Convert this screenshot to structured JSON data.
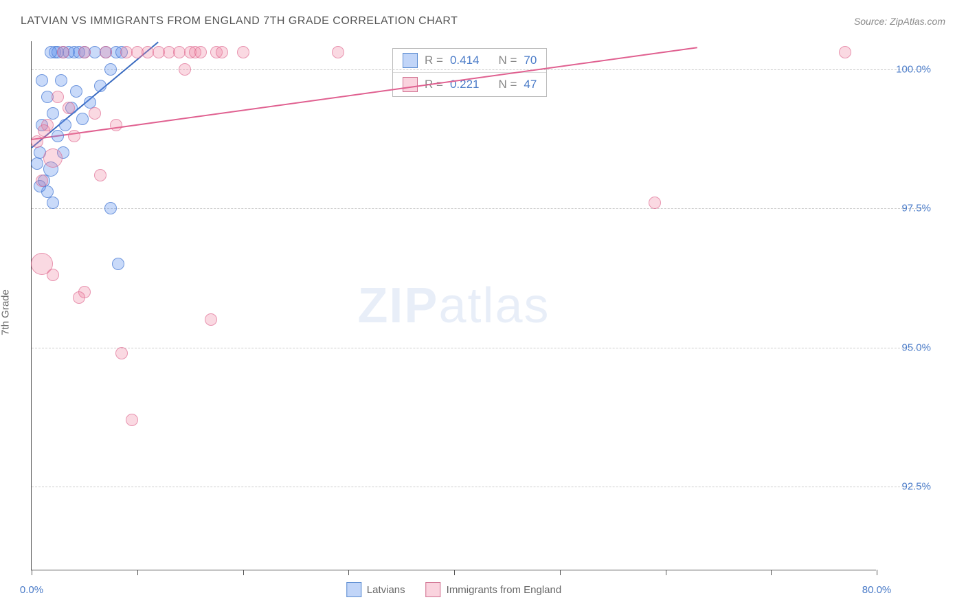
{
  "title": "LATVIAN VS IMMIGRANTS FROM ENGLAND 7TH GRADE CORRELATION CHART",
  "source": "Source: ZipAtlas.com",
  "y_axis_label": "7th Grade",
  "watermark_bold": "ZIP",
  "watermark_light": "atlas",
  "chart": {
    "type": "scatter",
    "background_color": "#ffffff",
    "grid_color": "#cccccc",
    "axis_color": "#555555",
    "tick_label_color": "#4a7bc8",
    "tick_fontsize": 15,
    "xlim": [
      0,
      80
    ],
    "ylim": [
      91,
      100.5
    ],
    "x_ticks": [
      0,
      10,
      20,
      30,
      40,
      50,
      60,
      70,
      80
    ],
    "x_tick_labels": {
      "0": "0.0%",
      "80": "80.0%"
    },
    "y_ticks": [
      92.5,
      95.0,
      97.5,
      100.0
    ],
    "y_tick_labels": [
      "92.5%",
      "95.0%",
      "97.5%",
      "100.0%"
    ],
    "point_radius_default": 9,
    "series": [
      {
        "name": "Latvians",
        "color_fill": "rgba(100,149,237,0.35)",
        "color_stroke": "rgba(70,120,210,0.7)",
        "R": "0.414",
        "N": "70",
        "trend": {
          "x1": 0,
          "y1": 98.6,
          "x2": 12,
          "y2": 100.5,
          "color": "#3a6bc0",
          "width": 2
        },
        "points": [
          {
            "x": 0.5,
            "y": 98.3,
            "r": 9
          },
          {
            "x": 0.8,
            "y": 98.5,
            "r": 9
          },
          {
            "x": 1.0,
            "y": 99.0,
            "r": 9
          },
          {
            "x": 1.2,
            "y": 98.0,
            "r": 9
          },
          {
            "x": 1.5,
            "y": 99.5,
            "r": 9
          },
          {
            "x": 1.8,
            "y": 98.2,
            "r": 11
          },
          {
            "x": 2.0,
            "y": 99.2,
            "r": 9
          },
          {
            "x": 2.2,
            "y": 100.3,
            "r": 9
          },
          {
            "x": 2.5,
            "y": 98.8,
            "r": 9
          },
          {
            "x": 2.8,
            "y": 99.8,
            "r": 9
          },
          {
            "x": 3.0,
            "y": 100.3,
            "r": 9
          },
          {
            "x": 3.2,
            "y": 99.0,
            "r": 9
          },
          {
            "x": 3.5,
            "y": 100.3,
            "r": 9
          },
          {
            "x": 3.8,
            "y": 99.3,
            "r": 9
          },
          {
            "x": 4.0,
            "y": 100.3,
            "r": 9
          },
          {
            "x": 4.2,
            "y": 99.6,
            "r": 9
          },
          {
            "x": 4.5,
            "y": 100.3,
            "r": 9
          },
          {
            "x": 4.8,
            "y": 99.1,
            "r": 9
          },
          {
            "x": 5.0,
            "y": 100.3,
            "r": 9
          },
          {
            "x": 5.5,
            "y": 99.4,
            "r": 9
          },
          {
            "x": 6.0,
            "y": 100.3,
            "r": 9
          },
          {
            "x": 6.5,
            "y": 99.7,
            "r": 9
          },
          {
            "x": 7.0,
            "y": 100.3,
            "r": 9
          },
          {
            "x": 7.5,
            "y": 100.0,
            "r": 9
          },
          {
            "x": 8.0,
            "y": 100.3,
            "r": 9
          },
          {
            "x": 8.5,
            "y": 100.3,
            "r": 9
          },
          {
            "x": 2.0,
            "y": 97.6,
            "r": 9
          },
          {
            "x": 7.5,
            "y": 97.5,
            "r": 9
          },
          {
            "x": 8.2,
            "y": 96.5,
            "r": 9
          },
          {
            "x": 1.5,
            "y": 97.8,
            "r": 9
          },
          {
            "x": 3.0,
            "y": 98.5,
            "r": 9
          },
          {
            "x": 1.0,
            "y": 99.8,
            "r": 9
          },
          {
            "x": 2.5,
            "y": 100.3,
            "r": 9
          },
          {
            "x": 1.8,
            "y": 100.3,
            "r": 9
          },
          {
            "x": 0.8,
            "y": 97.9,
            "r": 9
          }
        ]
      },
      {
        "name": "Immigrants from England",
        "color_fill": "rgba(240,128,160,0.3)",
        "color_stroke": "rgba(220,100,140,0.6)",
        "R": "0.221",
        "N": "47",
        "trend": {
          "x1": 0,
          "y1": 98.75,
          "x2": 63,
          "y2": 100.4,
          "color": "#e06090",
          "width": 2
        },
        "points": [
          {
            "x": 0.5,
            "y": 98.7,
            "r": 9
          },
          {
            "x": 1.0,
            "y": 98.0,
            "r": 9
          },
          {
            "x": 1.5,
            "y": 99.0,
            "r": 9
          },
          {
            "x": 2.0,
            "y": 98.4,
            "r": 14
          },
          {
            "x": 2.5,
            "y": 99.5,
            "r": 9
          },
          {
            "x": 3.0,
            "y": 100.3,
            "r": 9
          },
          {
            "x": 4.0,
            "y": 98.8,
            "r": 9
          },
          {
            "x": 5.0,
            "y": 100.3,
            "r": 9
          },
          {
            "x": 6.0,
            "y": 99.2,
            "r": 9
          },
          {
            "x": 7.0,
            "y": 100.3,
            "r": 9
          },
          {
            "x": 8.0,
            "y": 99.0,
            "r": 9
          },
          {
            "x": 9.0,
            "y": 100.3,
            "r": 9
          },
          {
            "x": 10.0,
            "y": 100.3,
            "r": 9
          },
          {
            "x": 11.0,
            "y": 100.3,
            "r": 9
          },
          {
            "x": 12.0,
            "y": 100.3,
            "r": 9
          },
          {
            "x": 13.0,
            "y": 100.3,
            "r": 9
          },
          {
            "x": 14.0,
            "y": 100.3,
            "r": 9
          },
          {
            "x": 14.5,
            "y": 100.0,
            "r": 9
          },
          {
            "x": 15.0,
            "y": 100.3,
            "r": 9
          },
          {
            "x": 15.5,
            "y": 100.3,
            "r": 9
          },
          {
            "x": 16.0,
            "y": 100.3,
            "r": 9
          },
          {
            "x": 17.5,
            "y": 100.3,
            "r": 9
          },
          {
            "x": 18.0,
            "y": 100.3,
            "r": 9
          },
          {
            "x": 20.0,
            "y": 100.3,
            "r": 9
          },
          {
            "x": 29.0,
            "y": 100.3,
            "r": 9
          },
          {
            "x": 77.0,
            "y": 100.3,
            "r": 9
          },
          {
            "x": 59.0,
            "y": 97.6,
            "r": 9
          },
          {
            "x": 6.5,
            "y": 98.1,
            "r": 9
          },
          {
            "x": 5.0,
            "y": 96.0,
            "r": 9
          },
          {
            "x": 4.5,
            "y": 95.9,
            "r": 9
          },
          {
            "x": 8.5,
            "y": 94.9,
            "r": 9
          },
          {
            "x": 17.0,
            "y": 95.5,
            "r": 9
          },
          {
            "x": 9.5,
            "y": 93.7,
            "r": 9
          },
          {
            "x": 1.0,
            "y": 96.5,
            "r": 16
          },
          {
            "x": 2.0,
            "y": 96.3,
            "r": 9
          },
          {
            "x": 1.2,
            "y": 98.9,
            "r": 9
          },
          {
            "x": 3.5,
            "y": 99.3,
            "r": 9
          }
        ]
      }
    ]
  },
  "legend": {
    "items": [
      {
        "label": "Latvians",
        "swatch": "blue"
      },
      {
        "label": "Immigrants from England",
        "swatch": "pink"
      }
    ]
  },
  "stats_box": {
    "rows": [
      {
        "swatch": "blue",
        "R_label": "R =",
        "R_val": "0.414",
        "N_label": "N =",
        "N_val": "70"
      },
      {
        "swatch": "pink",
        "R_label": "R =",
        "R_val": "0.221",
        "N_label": "N =",
        "N_val": "47"
      }
    ]
  }
}
